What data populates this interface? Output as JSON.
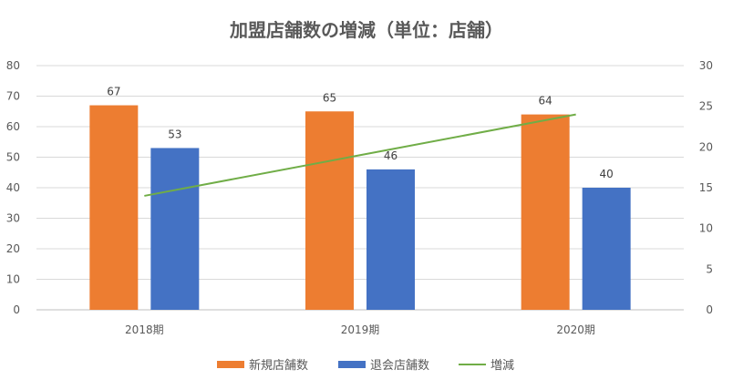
{
  "chart_data": {
    "type": "bar+line",
    "title": "加盟店舗数の増減（単位：店舗）",
    "categories": [
      "2018期",
      "2019期",
      "2020期"
    ],
    "series": [
      {
        "name": "新規店舗数",
        "type": "bar",
        "axis": "left",
        "color": "#ED7D31",
        "values": [
          67,
          65,
          64
        ],
        "data_labels": true
      },
      {
        "name": "退会店舗数",
        "type": "bar",
        "axis": "left",
        "color": "#4472C4",
        "values": [
          53,
          46,
          40
        ],
        "data_labels": true
      },
      {
        "name": "増減",
        "type": "line",
        "axis": "right",
        "color": "#70AD47",
        "values": [
          14,
          19,
          24
        ],
        "data_labels": false
      }
    ],
    "left_axis": {
      "range": [
        0,
        80
      ],
      "ticks": [
        0,
        10,
        20,
        30,
        40,
        50,
        60,
        70,
        80
      ]
    },
    "right_axis": {
      "range": [
        0,
        30
      ],
      "ticks": [
        0,
        5,
        10,
        15,
        20,
        25,
        30
      ]
    },
    "grid": true,
    "legend": "bottom"
  }
}
